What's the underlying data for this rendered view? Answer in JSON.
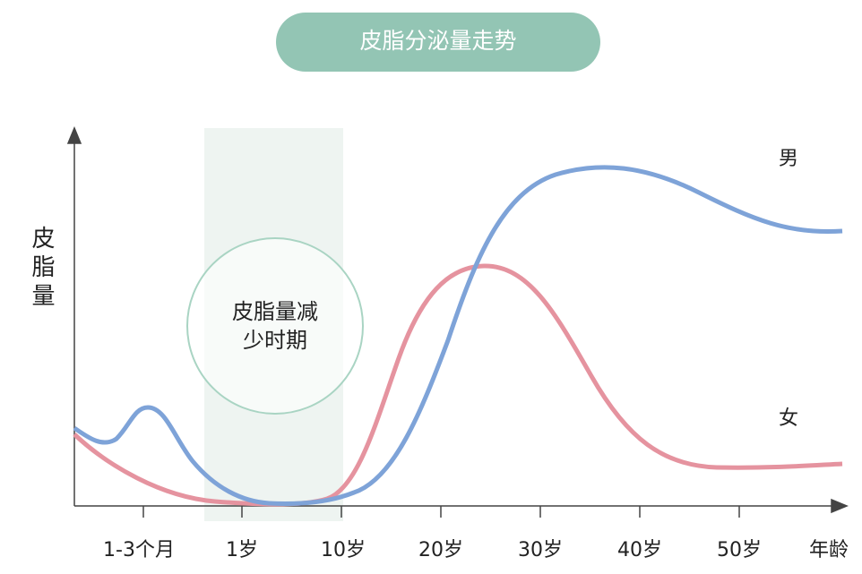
{
  "header": {
    "title": "皮脂分泌量走势"
  },
  "axis": {
    "y_label": "皮脂量",
    "x_labels": [
      "1-3个月",
      "1岁",
      "10岁",
      "20岁",
      "30岁",
      "40岁",
      "50岁"
    ],
    "x_title": "年龄"
  },
  "callout": {
    "lines": [
      "皮脂量减",
      "少时期"
    ]
  },
  "legend": {
    "male": "男",
    "female": "女"
  }
}
